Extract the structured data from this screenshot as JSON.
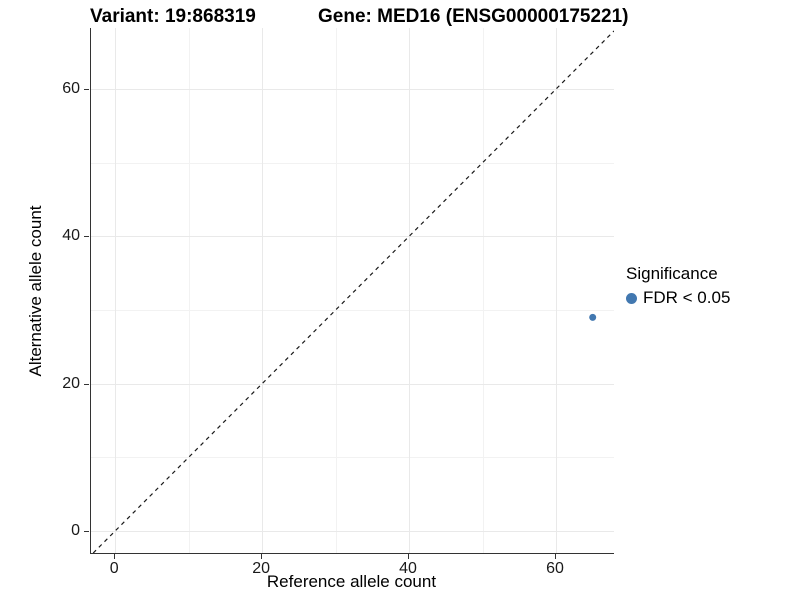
{
  "titles": {
    "variant": "Variant: 19:868319",
    "gene": "Gene: MED16 (ENSG00000175221)"
  },
  "axes": {
    "x": {
      "label": "Reference allele count",
      "ticks": [
        0,
        20,
        40,
        60
      ]
    },
    "y": {
      "label": "Alternative allele count",
      "ticks": [
        0,
        20,
        40,
        60
      ]
    }
  },
  "legend": {
    "title": "Significance",
    "items": [
      {
        "label": "FDR < 0.05",
        "color": "#4278b0"
      }
    ]
  },
  "colors": {
    "point": "#4278b0",
    "grid_major": "#e9e9e9",
    "grid_minor": "#f2f2f2",
    "axis_line": "#333333",
    "reference_line": "#1a1a1a",
    "background": "#ffffff"
  },
  "chart_data": {
    "type": "scatter",
    "title": "Variant: 19:868319",
    "subtitle": "Gene: MED16 (ENSG00000175221)",
    "xlabel": "Reference allele count",
    "ylabel": "Alternative allele count",
    "xlim": [
      -3.3,
      67.9
    ],
    "ylim": [
      -3.0,
      68.3
    ],
    "x_ticks": [
      0,
      20,
      40,
      60
    ],
    "y_ticks": [
      0,
      20,
      40,
      60
    ],
    "x_minor_ticks": [
      10,
      30,
      50
    ],
    "y_minor_ticks": [
      10,
      30,
      50
    ],
    "grid": "on",
    "legend_position": "right",
    "series": [
      {
        "name": "FDR < 0.05",
        "color": "#4278b0",
        "points": [
          {
            "x": 65,
            "y": 29
          }
        ]
      }
    ],
    "reference_line": {
      "kind": "identity y=x",
      "style": "dashed",
      "color": "#1a1a1a"
    }
  }
}
